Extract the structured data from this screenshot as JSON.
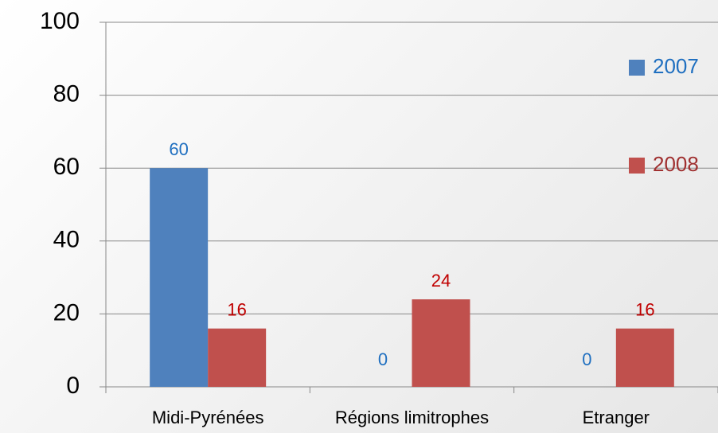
{
  "chart_data": {
    "type": "bar",
    "categories": [
      "Midi-Pyrénées",
      "Régions limitrophes",
      "Etranger"
    ],
    "series": [
      {
        "name": "2007",
        "color": "#4f81bd",
        "values": [
          60,
          0,
          0
        ]
      },
      {
        "name": "2008",
        "color": "#c0504d",
        "values": [
          16,
          24,
          16
        ]
      }
    ],
    "ylim": [
      0,
      100
    ],
    "yticks": [
      0,
      20,
      40,
      60,
      80,
      100
    ],
    "grid": true,
    "legend": "right"
  }
}
